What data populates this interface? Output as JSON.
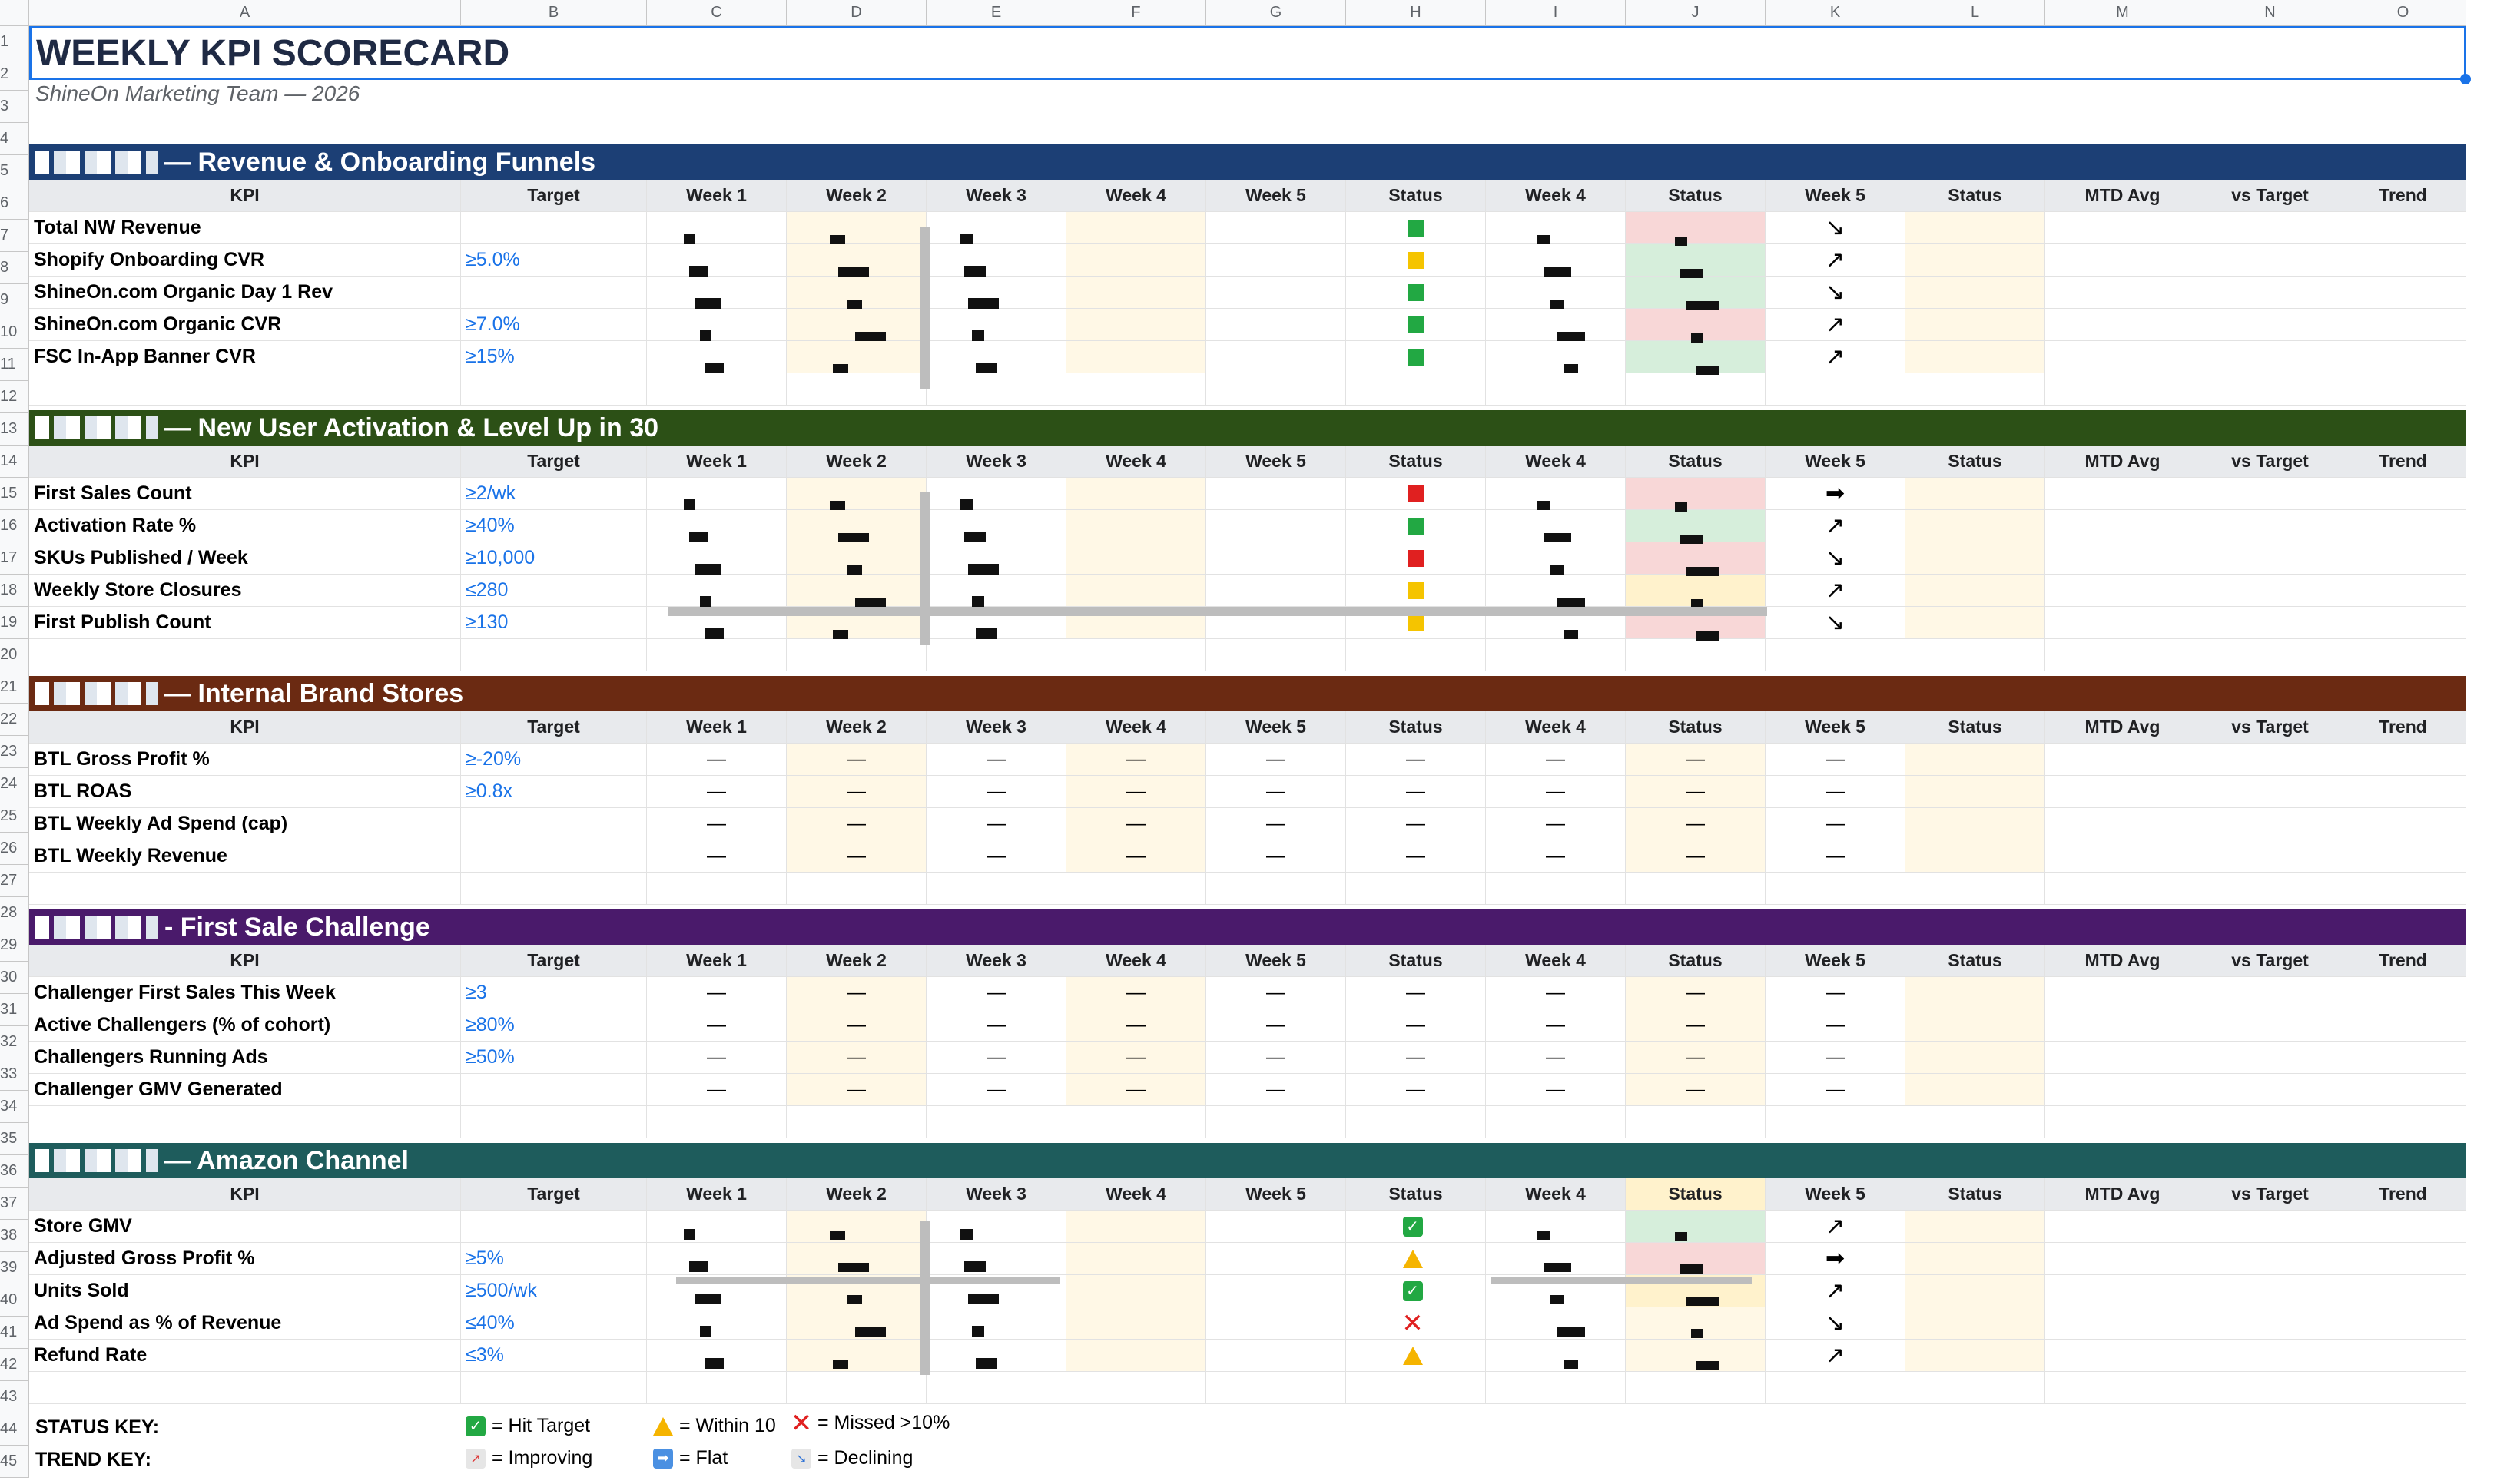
{
  "columns": [
    "A",
    "B",
    "C",
    "D",
    "E",
    "F",
    "G",
    "H",
    "I",
    "J",
    "K",
    "L",
    "M",
    "N",
    "O"
  ],
  "title": "WEEKLY KPI SCORECARD",
  "subtitle": "ShineOn Marketing Team — 2026",
  "header_row": [
    "KPI",
    "Target",
    "Week 1",
    "Week 2",
    "Week 3",
    "Week 4",
    "Week 5",
    "Status",
    "Week 4",
    "Status",
    "Week 5",
    "Status",
    "MTD Avg",
    "vs Target",
    "Trend"
  ],
  "sections": [
    {
      "title": "— Revenue & Onboarding Funnels",
      "color": "#1c3f75",
      "rows": [
        {
          "kpi": "Total NW Revenue",
          "target": "",
          "trend": "↘"
        },
        {
          "kpi": "Shopify Onboarding CVR",
          "target": "≥5.0%",
          "trend": "↗"
        },
        {
          "kpi": "ShineOn.com Organic Day 1 Rev",
          "target": "",
          "trend": "↘"
        },
        {
          "kpi": "ShineOn.com Organic CVR",
          "target": "≥7.0%",
          "trend": "↗"
        },
        {
          "kpi": "FSC In-App Banner CVR",
          "target": "≥15%",
          "trend": "↗"
        }
      ]
    },
    {
      "title": "— New User Activation & Level Up in 30",
      "color": "#2c5016",
      "rows": [
        {
          "kpi": "First Sales Count",
          "target": "≥2/wk",
          "trend": "➡"
        },
        {
          "kpi": "Activation Rate %",
          "target": "≥40%",
          "trend": "↗"
        },
        {
          "kpi": "SKUs Published / Week",
          "target": "≥10,000",
          "trend": "↘"
        },
        {
          "kpi": "Weekly Store Closures",
          "target": "≤280",
          "trend": "↗"
        },
        {
          "kpi": "First Publish Count",
          "target": "≥130",
          "trend": "↘"
        }
      ]
    },
    {
      "title": "— Internal Brand Stores",
      "color": "#6b2a12",
      "rows": [
        {
          "kpi": "BTL Gross Profit %",
          "target": "≥-20%",
          "trend": ""
        },
        {
          "kpi": "BTL ROAS",
          "target": "≥0.8x",
          "trend": ""
        },
        {
          "kpi": "BTL Weekly Ad Spend (cap)",
          "target": "",
          "trend": ""
        },
        {
          "kpi": "BTL Weekly Revenue",
          "target": "",
          "trend": ""
        }
      ]
    },
    {
      "title": "- First Sale Challenge",
      "color": "#4a1a6b",
      "rows": [
        {
          "kpi": "Challenger First Sales This Week",
          "target": "≥3",
          "trend": ""
        },
        {
          "kpi": "Active Challengers (% of cohort)",
          "target": "≥80%",
          "trend": ""
        },
        {
          "kpi": "Challengers Running Ads",
          "target": "≥50%",
          "trend": ""
        },
        {
          "kpi": "Challenger GMV Generated",
          "target": "",
          "trend": ""
        }
      ]
    },
    {
      "title": "— Amazon Channel",
      "color": "#1e5c5c",
      "rows": [
        {
          "kpi": "Store GMV",
          "target": "",
          "trend": "↗"
        },
        {
          "kpi": "Adjusted Gross Profit %",
          "target": "≥5%",
          "trend": "➡"
        },
        {
          "kpi": "Units Sold",
          "target": "≥500/wk",
          "trend": "↗"
        },
        {
          "kpi": "Ad Spend as % of Revenue",
          "target": "≤40%",
          "trend": "↘"
        },
        {
          "kpi": "Refund Rate",
          "target": "≤3%",
          "trend": "↗"
        }
      ]
    }
  ],
  "dash": "—",
  "status_key": {
    "label": "STATUS KEY:",
    "hit": "= Hit Target",
    "within": "= Within 10",
    "missed": "= Missed >10%"
  },
  "trend_key": {
    "label": "TREND KEY:",
    "improving": "= Improving",
    "flat": "= Flat",
    "declining": "= Declining"
  },
  "row_numbers": [
    "1",
    "2",
    "3",
    "4",
    "5",
    "6",
    "7",
    "8",
    "9",
    "10",
    "11",
    "12",
    "13",
    "14",
    "15",
    "16",
    "17",
    "18",
    "19",
    "20",
    "21",
    "22",
    "23",
    "24",
    "25",
    "26",
    "27",
    "28",
    "29",
    "30",
    "31",
    "32",
    "33",
    "34",
    "35",
    "36",
    "37",
    "38",
    "39",
    "40",
    "41",
    "42",
    "43",
    "44",
    "45"
  ],
  "colors": {
    "header_gray": "#e8eaed",
    "week_shade": "#fff8e6",
    "selection_blue": "#1a73e8",
    "target_blue": "#1a73e8"
  }
}
